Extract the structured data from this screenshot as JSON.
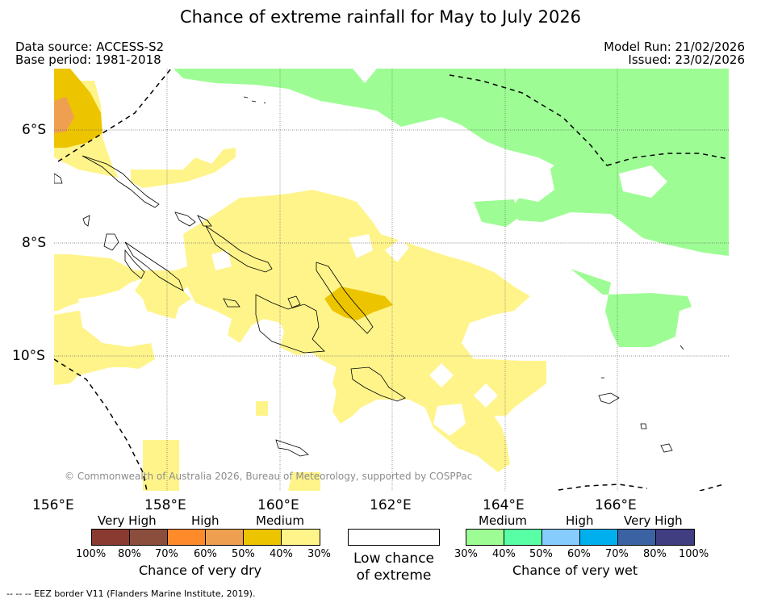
{
  "title": "Chance of extreme rainfall for May to July 2026",
  "meta": {
    "data_source": "Data source: ACCESS-S2",
    "base_period": "Base period: 1981-2018",
    "model_run": "Model Run: 21/02/2026",
    "issued": "Issued: 23/02/2026"
  },
  "map": {
    "lat_labels": [
      "6°S",
      "8°S",
      "10°S"
    ],
    "lon_labels": [
      "156°E",
      "158°E",
      "160°E",
      "162°E",
      "164°E",
      "166°E"
    ],
    "copyright": "© Commonwealth of Australia 2026, Bureau of Meteorology, supported by COSPPac"
  },
  "legend": {
    "dry": {
      "categories": [
        "Very High",
        "High",
        "Medium"
      ],
      "ticks": [
        "100%",
        "80%",
        "70%",
        "60%",
        "50%",
        "40%",
        "30%"
      ],
      "colors": [
        "#8b3a32",
        "#8b4d3c",
        "#ff8a2a",
        "#eea050",
        "#ecc400",
        "#fff48a"
      ],
      "title": "Chance of very dry"
    },
    "low": {
      "line1": "Low chance",
      "line2": "of extreme"
    },
    "wet": {
      "categories": [
        "Medium",
        "High",
        "Very High"
      ],
      "ticks": [
        "30%",
        "40%",
        "50%",
        "60%",
        "70%",
        "80%",
        "100%"
      ],
      "colors": [
        "#9dfd94",
        "#58ffa4",
        "#86ccfc",
        "#00b0ee",
        "#3b63a3",
        "#403d80"
      ],
      "title": "Chance of very wet"
    }
  },
  "footer": "--  --  -- EEZ border V11 (Flanders Marine Institute, 2019)."
}
